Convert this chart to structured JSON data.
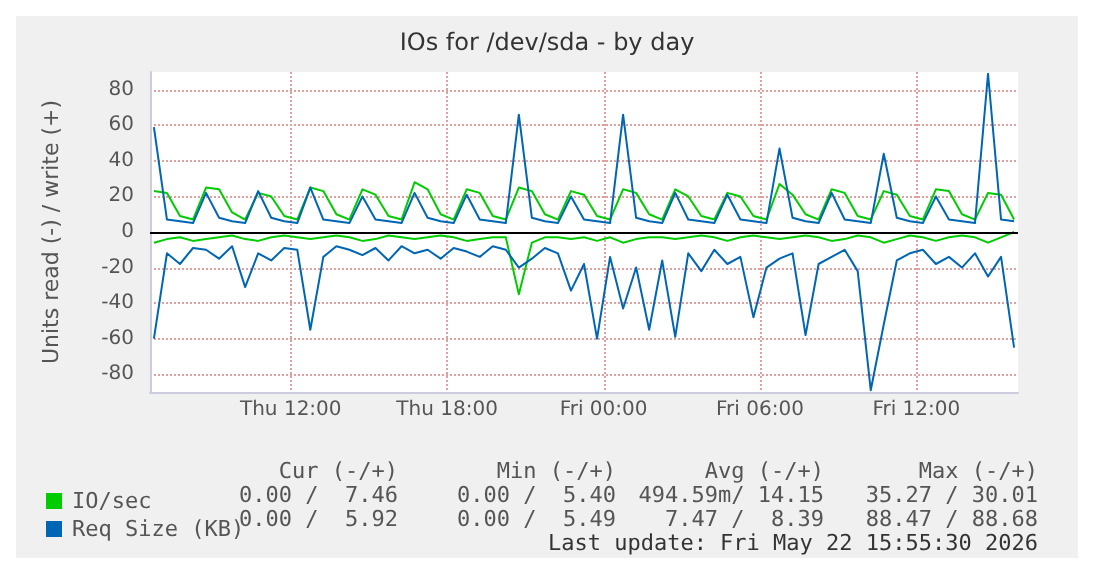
{
  "chart_data": {
    "type": "line",
    "title": "IOs for /dev/sda - by day",
    "ylabel": "Units read (-) / write (+)",
    "x": [
      "2026-05-21T06:45",
      "2026-05-21T07:15",
      "2026-05-21T07:45",
      "2026-05-21T08:15",
      "2026-05-21T08:45",
      "2026-05-21T09:15",
      "2026-05-21T09:45",
      "2026-05-21T10:15",
      "2026-05-21T10:45",
      "2026-05-21T11:15",
      "2026-05-21T11:45",
      "2026-05-21T12:15",
      "2026-05-21T12:45",
      "2026-05-21T13:15",
      "2026-05-21T13:45",
      "2026-05-21T14:15",
      "2026-05-21T14:45",
      "2026-05-21T15:15",
      "2026-05-21T15:45",
      "2026-05-21T16:15",
      "2026-05-21T16:45",
      "2026-05-21T17:15",
      "2026-05-21T17:45",
      "2026-05-21T18:15",
      "2026-05-21T18:45",
      "2026-05-21T19:15",
      "2026-05-21T19:45",
      "2026-05-21T20:15",
      "2026-05-21T20:45",
      "2026-05-21T21:15",
      "2026-05-21T21:45",
      "2026-05-21T22:15",
      "2026-05-21T22:45",
      "2026-05-21T23:15",
      "2026-05-21T23:45",
      "2026-05-22T00:15",
      "2026-05-22T00:45",
      "2026-05-22T01:15",
      "2026-05-22T01:45",
      "2026-05-22T02:15",
      "2026-05-22T02:45",
      "2026-05-22T03:15",
      "2026-05-22T03:45",
      "2026-05-22T04:15",
      "2026-05-22T04:45",
      "2026-05-22T05:15",
      "2026-05-22T05:45",
      "2026-05-22T06:15",
      "2026-05-22T06:45",
      "2026-05-22T07:15",
      "2026-05-22T07:45",
      "2026-05-22T08:15",
      "2026-05-22T08:45",
      "2026-05-22T09:15",
      "2026-05-22T09:45",
      "2026-05-22T10:15",
      "2026-05-22T10:45",
      "2026-05-22T11:15",
      "2026-05-22T11:45",
      "2026-05-22T12:15",
      "2026-05-22T12:45",
      "2026-05-22T13:15",
      "2026-05-22T13:45",
      "2026-05-22T14:15",
      "2026-05-22T14:45",
      "2026-05-22T15:15",
      "2026-05-22T15:45"
    ],
    "series": [
      {
        "name": "IO/sec",
        "color": "#00cc00",
        "values": [
          23,
          22,
          9,
          7,
          25,
          24,
          11,
          7,
          22,
          20,
          9,
          7,
          25,
          23,
          10,
          7,
          24,
          21,
          9,
          7,
          28,
          24,
          10,
          7,
          24,
          22,
          9,
          7,
          25,
          23,
          10,
          7,
          23,
          21,
          9,
          7,
          24,
          22,
          10,
          7,
          24,
          20,
          9,
          7,
          22,
          20,
          9,
          7,
          27,
          21,
          10,
          7,
          24,
          22,
          9,
          7,
          23,
          21,
          9,
          7,
          24,
          23,
          10,
          7,
          22,
          21,
          7
        ]
      },
      {
        "color": "#00cc00",
        "values": [
          -6,
          -4,
          -3,
          -5,
          -4,
          -3,
          -2,
          -4,
          -5,
          -3,
          -2,
          -3,
          -4,
          -3,
          -2,
          -3,
          -5,
          -4,
          -2,
          -3,
          -4,
          -3,
          -2,
          -3,
          -5,
          -4,
          -3,
          -3,
          -35,
          -6,
          -3,
          -3,
          -4,
          -3,
          -5,
          -3,
          -6,
          -4,
          -3,
          -3,
          -4,
          -3,
          -2,
          -3,
          -5,
          -3,
          -2,
          -3,
          -4,
          -3,
          -2,
          -3,
          -5,
          -4,
          -2,
          -3,
          -6,
          -4,
          -2,
          -3,
          -5,
          -3,
          -2,
          -3,
          -6,
          -3,
          0
        ]
      },
      {
        "name": "Req Size (KB)",
        "color": "#0066b3",
        "values": [
          59,
          7,
          6,
          5,
          22,
          8,
          6,
          5,
          23,
          8,
          6,
          5,
          25,
          7,
          6,
          5,
          20,
          7,
          6,
          5,
          22,
          8,
          6,
          5,
          21,
          7,
          6,
          5,
          66,
          8,
          6,
          5,
          20,
          7,
          6,
          5,
          66,
          8,
          6,
          5,
          22,
          7,
          6,
          5,
          21,
          7,
          6,
          5,
          47,
          8,
          6,
          5,
          22,
          7,
          6,
          5,
          44,
          8,
          6,
          5,
          20,
          7,
          6,
          5,
          89,
          7,
          6
        ]
      },
      {
        "color": "#0066b3",
        "values": [
          -60,
          -12,
          -18,
          -9,
          -10,
          -15,
          -8,
          -31,
          -12,
          -16,
          -9,
          -10,
          -55,
          -14,
          -8,
          -10,
          -13,
          -9,
          -16,
          -8,
          -12,
          -10,
          -15,
          -9,
          -11,
          -14,
          -8,
          -10,
          -20,
          -15,
          -9,
          -12,
          -33,
          -18,
          -60,
          -14,
          -43,
          -20,
          -55,
          -16,
          -59,
          -12,
          -22,
          -10,
          -18,
          -14,
          -48,
          -20,
          -15,
          -12,
          -58,
          -18,
          -14,
          -10,
          -22,
          -89,
          -52,
          -16,
          -12,
          -10,
          -18,
          -14,
          -20,
          -12,
          -25,
          -14,
          -65
        ]
      }
    ],
    "xlim": [
      "2026-05-21T06:36",
      "2026-05-22T15:54"
    ],
    "xticks": [
      {
        "value": "2026-05-21T12:00",
        "label": "Thu 12:00"
      },
      {
        "value": "2026-05-21T18:00",
        "label": "Thu 18:00"
      },
      {
        "value": "2026-05-22T00:00",
        "label": "Fri 00:00"
      },
      {
        "value": "2026-05-22T06:00",
        "label": "Fri 06:00"
      },
      {
        "value": "2026-05-22T12:00",
        "label": "Fri 12:00"
      }
    ],
    "ref_lines": [
      {
        "axis": "y",
        "value": 0,
        "color": "#000000"
      }
    ],
    "ylim": [
      -90,
      90
    ],
    "yticks": [
      -80,
      -60,
      -40,
      -20,
      0,
      20,
      40,
      60,
      80
    ],
    "grid": true,
    "legend": "bottom left",
    "marker": "none",
    "line_style": "solid",
    "annotations": [
      "Cur (-/+)",
      "Min (-/+)",
      "Avg (-/+)",
      "Max (-/+)",
      "0.00 /  7.46",
      "0.00 /  5.40",
      "494.59m/ 14.15",
      "35.27 / 30.01",
      "0.00 /  5.92",
      "0.00 /  5.49",
      "7.47 /  8.39",
      "88.47 / 88.68",
      "Last update: Fri May 22 15:55:30 2026"
    ]
  }
}
